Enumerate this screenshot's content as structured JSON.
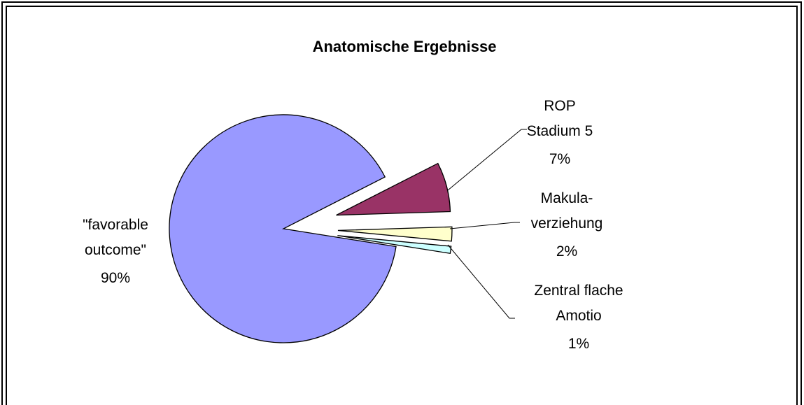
{
  "chart_data": {
    "type": "pie",
    "title": "Anatomische Ergebnisse",
    "categories": [
      [
        "ROP",
        "Stadium 5"
      ],
      [
        "Makula-",
        "verziehung"
      ],
      [
        "Zentral flache",
        "Amotio"
      ],
      [
        "\"favorable",
        "outcome\""
      ]
    ],
    "values": [
      7,
      2,
      1,
      90
    ],
    "value_labels": [
      "7%",
      "2%",
      "1%",
      "90%"
    ],
    "colors": [
      "#993366",
      "#ffffcc",
      "#ccffff",
      "#9999ff"
    ]
  }
}
